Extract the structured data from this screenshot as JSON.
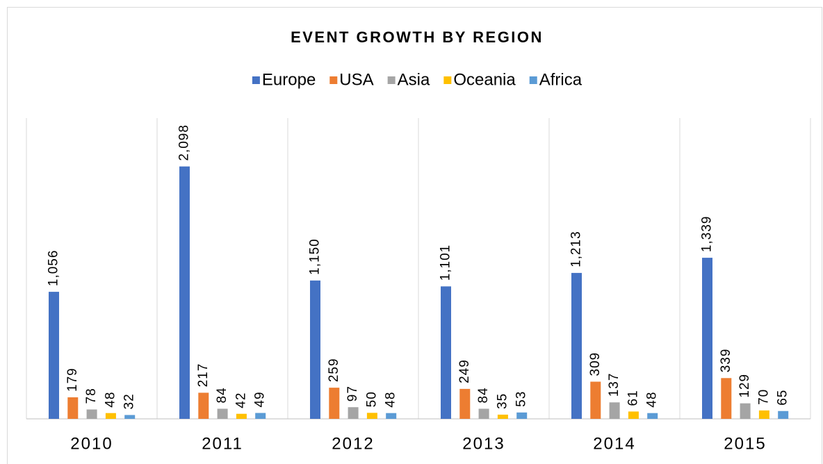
{
  "chart_data": {
    "type": "bar",
    "title": "EVENT GROWTH BY REGION",
    "categories": [
      "2010",
      "2011",
      "2012",
      "2013",
      "2014",
      "2015"
    ],
    "series": [
      {
        "name": "Europe",
        "color": "#4472c4",
        "values": [
          1056,
          2098,
          1150,
          1101,
          1213,
          1339
        ],
        "value_labels": [
          "1,056",
          "2,098",
          "1,150",
          "1,101",
          "1,213",
          "1,339"
        ]
      },
      {
        "name": "USA",
        "color": "#ed7d31",
        "values": [
          179,
          217,
          259,
          249,
          309,
          339
        ],
        "value_labels": [
          "179",
          "217",
          "259",
          "249",
          "309",
          "339"
        ]
      },
      {
        "name": "Asia",
        "color": "#a5a5a5",
        "values": [
          78,
          84,
          97,
          84,
          137,
          129
        ],
        "value_labels": [
          "78",
          "84",
          "97",
          "84",
          "137",
          "129"
        ]
      },
      {
        "name": "Oceania",
        "color": "#ffc000",
        "values": [
          48,
          42,
          50,
          35,
          61,
          70
        ],
        "value_labels": [
          "48",
          "42",
          "50",
          "35",
          "61",
          "70"
        ]
      },
      {
        "name": "Africa",
        "color": "#5b9bd5",
        "values": [
          32,
          49,
          48,
          53,
          48,
          65
        ],
        "value_labels": [
          "32",
          "49",
          "48",
          "53",
          "48",
          "65"
        ]
      }
    ],
    "ylim": [
      0,
      2500
    ],
    "legend": "top"
  }
}
